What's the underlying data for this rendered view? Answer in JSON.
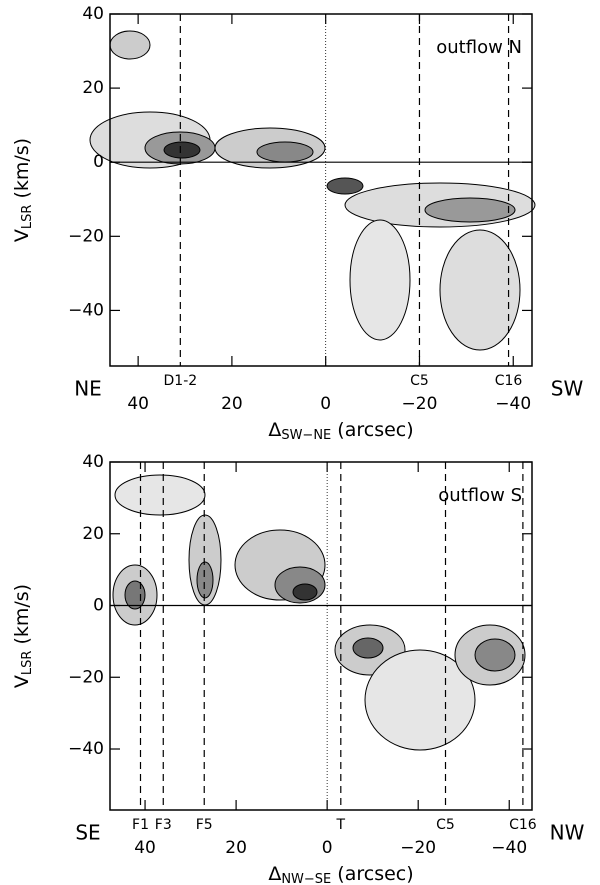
{
  "chart_data": [
    {
      "type": "contour",
      "annotation": "outflow N",
      "left_label": "NE",
      "right_label": "SW",
      "ylabel": {
        "main": "V",
        "sub": "LSR",
        "rest": " (km/s)"
      },
      "xlabel": {
        "main": "Δ",
        "sub": "SW−NE",
        "rest": " (arcsec)"
      },
      "xlim": [
        46,
        -44
      ],
      "ylim": [
        -55,
        40
      ],
      "xticks": [
        40,
        20,
        0,
        {
          "value": -20,
          "label": "−20"
        },
        {
          "value": -40,
          "label": "−40"
        }
      ],
      "yticks": [
        40,
        20,
        0,
        {
          "value": -20,
          "label": "−20"
        },
        {
          "value": -40,
          "label": "−40"
        }
      ],
      "markers": [
        {
          "label": "D1-2",
          "x": 31
        },
        {
          "label": "C5",
          "x": -20
        },
        {
          "label": "C16",
          "x": -39
        }
      ]
    },
    {
      "type": "contour",
      "annotation": "outflow S",
      "left_label": "SE",
      "right_label": "NW",
      "ylabel": {
        "main": "V",
        "sub": "LSR",
        "rest": " (km/s)"
      },
      "xlabel": {
        "main": "Δ",
        "sub": "NW−SE",
        "rest": " (arcsec)"
      },
      "xlim": [
        47.7,
        -45
      ],
      "ylim": [
        -57,
        40
      ],
      "xticks": [
        40,
        20,
        0,
        {
          "value": -20,
          "label": "−20"
        },
        {
          "value": -40,
          "label": "−40"
        }
      ],
      "yticks": [
        40,
        20,
        0,
        {
          "value": -20,
          "label": "−20"
        },
        {
          "value": -40,
          "label": "−40"
        }
      ],
      "markers": [
        {
          "label": "F1",
          "x": 41
        },
        {
          "label": "F3",
          "x": 36
        },
        {
          "label": "F5",
          "x": 27
        },
        {
          "label": "T",
          "x": -3
        },
        {
          "label": "C5",
          "x": -26
        },
        {
          "label": "C16",
          "x": -43
        }
      ]
    }
  ]
}
